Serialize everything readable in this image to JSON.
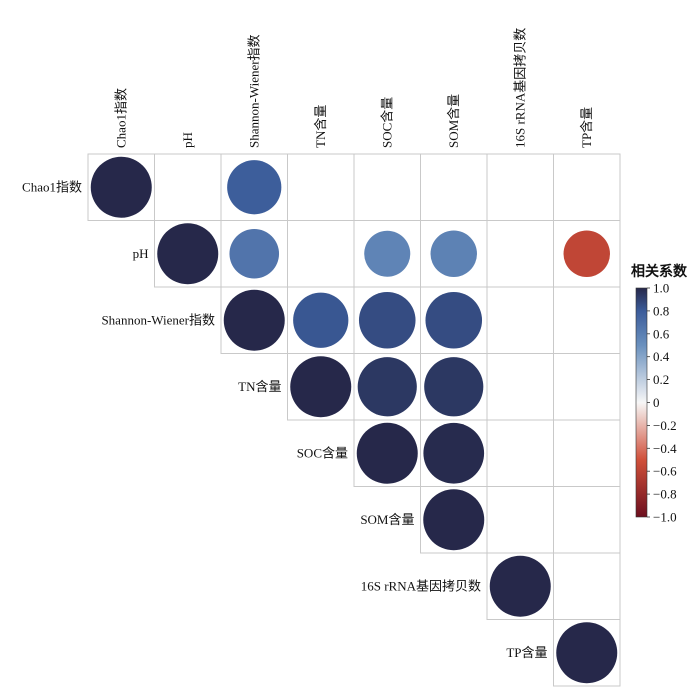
{
  "chart_data": {
    "type": "heatmap",
    "variables": [
      "Chao1指数",
      "pH",
      "Shannon-Wiener指数",
      "TN含量",
      "SOC含量",
      "SOM含量",
      "16S rRNA基因拷贝数",
      "TP含量"
    ],
    "matrix": [
      [
        1.0,
        null,
        0.79,
        null,
        null,
        null,
        null,
        null
      ],
      [
        null,
        1.0,
        0.66,
        null,
        0.57,
        0.58,
        null,
        -0.58
      ],
      [
        0.79,
        0.66,
        1.0,
        0.82,
        0.86,
        0.86,
        null,
        null
      ],
      [
        null,
        null,
        0.82,
        1.0,
        0.94,
        0.94,
        null,
        null
      ],
      [
        null,
        0.57,
        0.86,
        0.94,
        1.0,
        0.99,
        null,
        null
      ],
      [
        null,
        0.58,
        0.86,
        0.94,
        0.99,
        1.0,
        null,
        null
      ],
      [
        null,
        null,
        null,
        null,
        null,
        null,
        1.0,
        null
      ],
      [
        null,
        -0.58,
        null,
        null,
        null,
        null,
        null,
        1.0
      ]
    ],
    "display": "upper-triangle-circles",
    "colorbar": {
      "title": "相关系数",
      "range": [
        -1.0,
        1.0
      ],
      "ticks": [
        "1.0",
        "0.8",
        "0.6",
        "0.4",
        "0.2",
        "0",
        "−0.2",
        "−0.4",
        "−0.6",
        "−0.8",
        "−1.0"
      ],
      "colors": {
        "positive_end": "#26284a",
        "mid_positive": "#3b5c9a",
        "neutral": "#f7f7f7",
        "mid_negative": "#d0503a",
        "negative_end": "#6c0f1e"
      }
    },
    "grid": true
  }
}
